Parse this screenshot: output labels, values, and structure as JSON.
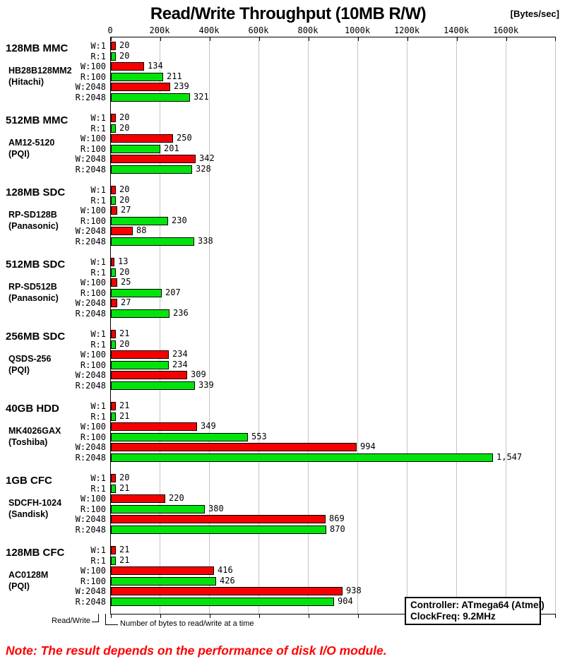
{
  "title": "Read/Write Throughput (10MB R/W)",
  "axis_unit": "[Bytes/sec]",
  "footer": {
    "read_write_label": "Read/Write",
    "bytes_label": "Number of bytes to read/write at a time"
  },
  "info_box": {
    "controller": "Controller: ATmega64 (Atmel)",
    "clock": "ClockFreq: 9.2MHz"
  },
  "note": "Note: The result depends on the performance of disk I/O module.",
  "colors": {
    "write_bar": "#f40000",
    "read_bar": "#00e40c",
    "grid": "#c5c5c5",
    "axis": "#000000",
    "note_text": "#ff0000"
  },
  "chart_data": {
    "type": "bar",
    "orientation": "horizontal",
    "title": "Read/Write Throughput (10MB R/W)",
    "xlabel": "[Bytes/sec]",
    "x_tick_labels": [
      "0",
      "200k",
      "400k",
      "600k",
      "800k",
      "1000k",
      "1200k",
      "1400k",
      "1600k"
    ],
    "x_ticks_k": [
      0,
      200,
      400,
      600,
      800,
      1000,
      1200,
      1400,
      1600
    ],
    "x_max_k": 1800,
    "grid": true,
    "bar_labels": [
      "W:1",
      "R:1",
      "W:100",
      "R:100",
      "W:2048",
      "R:2048"
    ],
    "series_colors": [
      "write",
      "read",
      "write",
      "read",
      "write",
      "read"
    ],
    "groups": [
      {
        "name": "128MB MMC",
        "model": "HB28B128MM2",
        "maker": "(Hitachi)",
        "values_kBps": [
          20,
          20,
          134,
          211,
          239,
          321
        ],
        "value_labels": [
          "20",
          "20",
          "134",
          "211",
          "239",
          "321"
        ]
      },
      {
        "name": "512MB MMC",
        "model": "AM12-5120",
        "maker": "(PQI)",
        "values_kBps": [
          20,
          20,
          250,
          201,
          342,
          328
        ],
        "value_labels": [
          "20",
          "20",
          "250",
          "201",
          "342",
          "328"
        ]
      },
      {
        "name": "128MB SDC",
        "model": "RP-SD128B",
        "maker": "(Panasonic)",
        "values_kBps": [
          20,
          20,
          27,
          230,
          88,
          338
        ],
        "value_labels": [
          "20",
          "20",
          "27",
          "230",
          "88",
          "338"
        ]
      },
      {
        "name": "512MB SDC",
        "model": "RP-SD512B",
        "maker": "(Panasonic)",
        "values_kBps": [
          13,
          20,
          25,
          207,
          27,
          236
        ],
        "value_labels": [
          "13",
          "20",
          "25",
          "207",
          "27",
          "236"
        ]
      },
      {
        "name": "256MB SDC",
        "model": "QSDS-256",
        "maker": "(PQI)",
        "values_kBps": [
          21,
          20,
          234,
          234,
          309,
          339
        ],
        "value_labels": [
          "21",
          "20",
          "234",
          "234",
          "309",
          "339"
        ]
      },
      {
        "name": "40GB HDD",
        "model": "MK4026GAX",
        "maker": "(Toshiba)",
        "values_kBps": [
          21,
          21,
          349,
          553,
          994,
          1547
        ],
        "value_labels": [
          "21",
          "21",
          "349",
          "553",
          "994",
          "1,547"
        ]
      },
      {
        "name": "1GB CFC",
        "model": "SDCFH-1024",
        "maker": "(Sandisk)",
        "values_kBps": [
          20,
          21,
          220,
          380,
          869,
          870
        ],
        "value_labels": [
          "20",
          "21",
          "220",
          "380",
          "869",
          "870"
        ]
      },
      {
        "name": "128MB CFC",
        "model": "AC0128M",
        "maker": "(PQI)",
        "values_kBps": [
          21,
          21,
          416,
          426,
          938,
          904
        ],
        "value_labels": [
          "21",
          "21",
          "416",
          "426",
          "938",
          "904"
        ]
      }
    ]
  }
}
